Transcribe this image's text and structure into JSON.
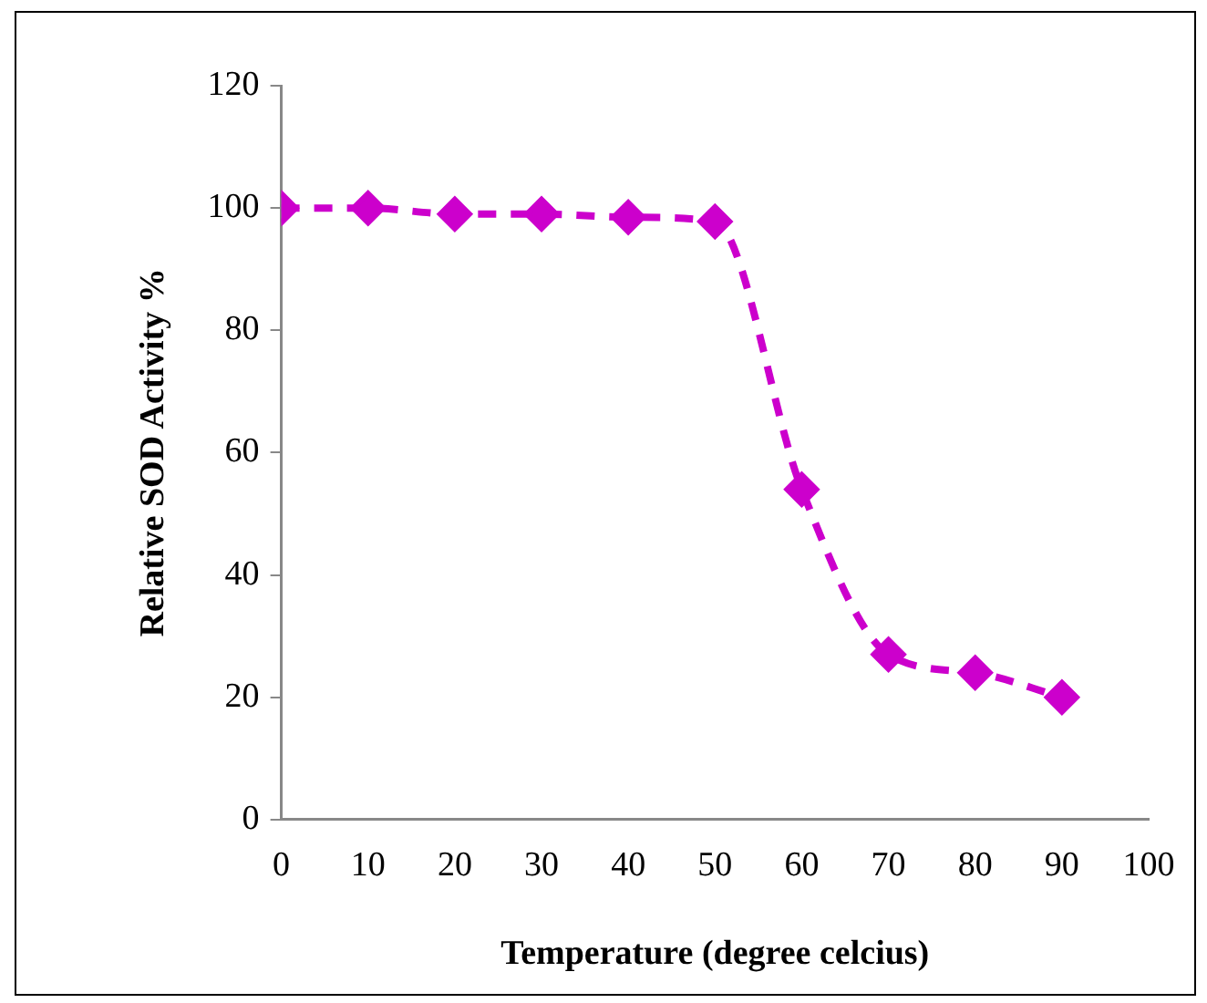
{
  "chart_data": {
    "type": "line",
    "xlabel": "Temperature (degree celcius)",
    "ylabel": "Relative SOD Activity %",
    "x": [
      0,
      10,
      20,
      30,
      40,
      50,
      60,
      70,
      80,
      90
    ],
    "series": [
      {
        "color": "#cc00cc",
        "values": [
          100,
          100,
          99,
          99,
          98.5,
          97.8,
          54,
          27,
          24,
          20
        ]
      }
    ],
    "xlim": [
      0,
      100
    ],
    "xticks": [
      0,
      10,
      20,
      30,
      40,
      50,
      60,
      70,
      80,
      90,
      100
    ],
    "ylim": [
      0,
      120
    ],
    "yticks": [
      0,
      20,
      40,
      60,
      80,
      100,
      120
    ],
    "grid": false,
    "legend": false,
    "marker": "diamond",
    "line_style": "dashed"
  }
}
